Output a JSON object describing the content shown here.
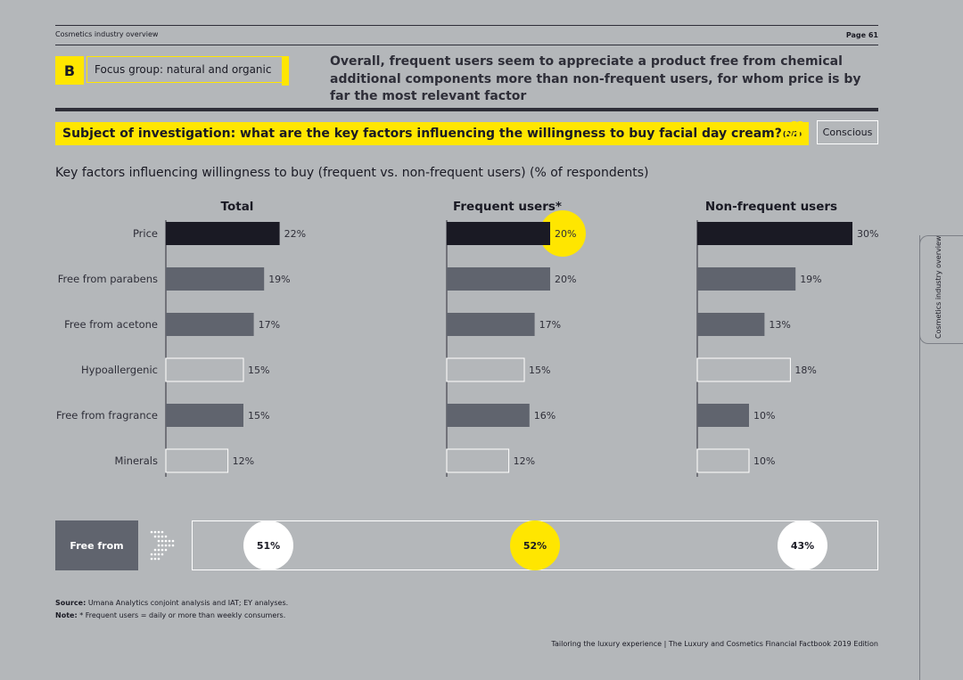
{
  "header": {
    "section": "Cosmetics industry overview",
    "page": "Page 61"
  },
  "focus": {
    "letter": "B",
    "label": "Focus group: natural and organic"
  },
  "headline": "Overall, frequent users seem to appreciate a product free from chemical additional components more than non-frequent users, for whom price is by far the most relevant factor",
  "subject": {
    "text": "Subject of investigation: what are the key factors influencing the willingness to buy facial day cream?",
    "suffix": "(2/2)"
  },
  "badge": "Conscious",
  "chart_title": {
    "main": "Key factors influencing willingness to buy (frequent vs. non-frequent users)",
    "unit": "(% of respondents)"
  },
  "colors": {
    "yellow": "#ffe600",
    "dark_bar": "#1a1a24",
    "grey_bar": "#60646e",
    "outline_bar": "#ffffff",
    "background": "#b4b7ba"
  },
  "chart_data": {
    "type": "bar",
    "orientation": "horizontal",
    "categories": [
      "Price",
      "Free from parabens",
      "Free from acetone",
      "Hypoallergenic",
      "Free from fragrance",
      "Minerals"
    ],
    "series": [
      {
        "name": "Total",
        "values": [
          22,
          19,
          17,
          15,
          15,
          12
        ],
        "labels": [
          "22%",
          "19%",
          "17%",
          "15%",
          "15%",
          "12%"
        ],
        "styles": [
          "dark",
          "grey",
          "grey",
          "outline",
          "grey",
          "outline"
        ]
      },
      {
        "name": "Frequent users*",
        "values": [
          20,
          20,
          17,
          15,
          16,
          12
        ],
        "labels": [
          "20%",
          "20%",
          "17%",
          "15%",
          "16%",
          "12%"
        ],
        "styles": [
          "dark",
          "grey",
          "grey",
          "outline",
          "grey",
          "outline"
        ],
        "highlight": 0
      },
      {
        "name": "Non-frequent users",
        "values": [
          30,
          19,
          13,
          18,
          10,
          10
        ],
        "labels": [
          "30%",
          "19%",
          "13%",
          "18%",
          "10%",
          "10%"
        ],
        "styles": [
          "dark",
          "grey",
          "grey",
          "outline",
          "grey",
          "outline"
        ]
      }
    ],
    "xlim": [
      0,
      30
    ]
  },
  "free_from": {
    "label": "Free from",
    "values": [
      "51%",
      "52%",
      "43%"
    ]
  },
  "source": {
    "source_label": "Source:",
    "source_text": "Umana Analytics conjoint analysis and IAT; EY analyses.",
    "note_label": "Note:",
    "note_text": "* Frequent users = daily or more than weekly consumers."
  },
  "footer": "Tailoring the luxury experience | The Luxury and Cosmetics Financial Factbook 2019 Edition",
  "side_tab": "Cosmetics industry overview"
}
